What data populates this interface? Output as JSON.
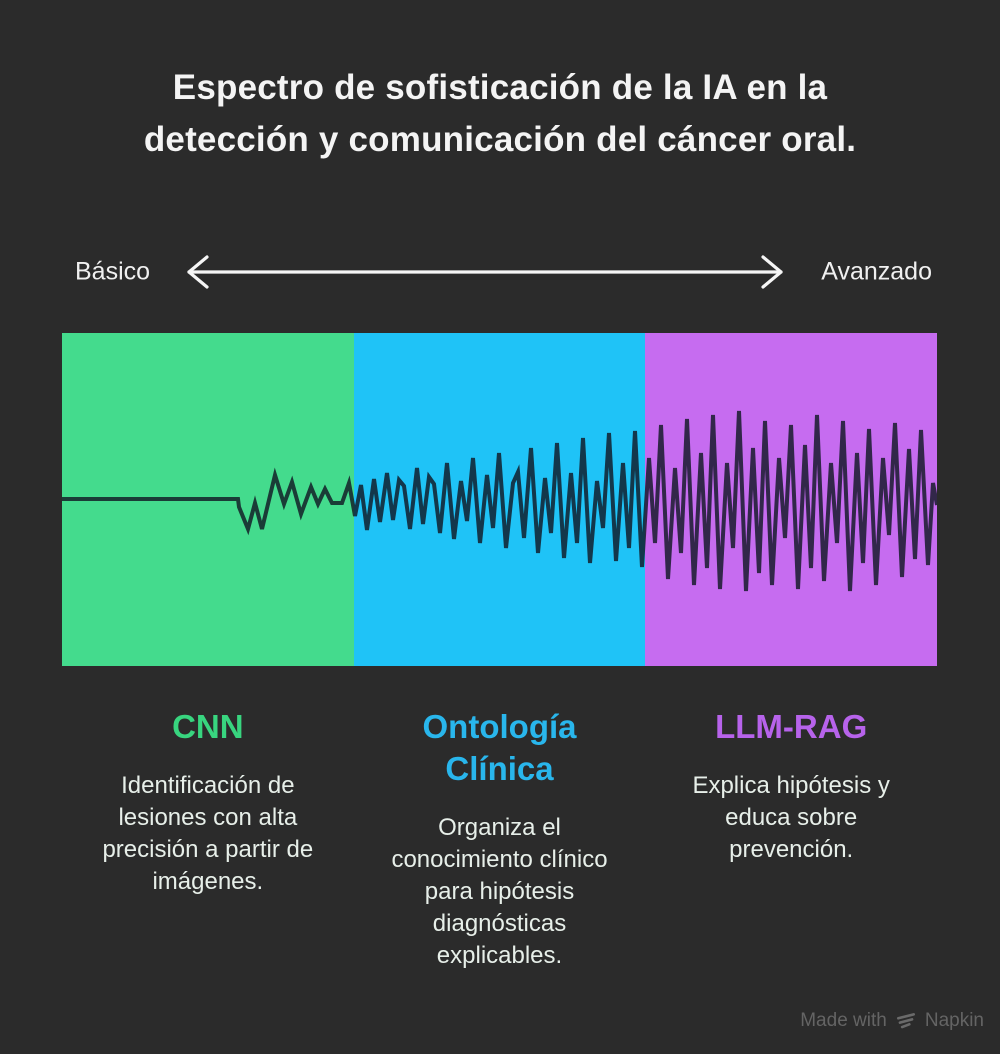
{
  "colors": {
    "background": "#2b2b2b",
    "title_text": "#f4f4f4",
    "axis_text": "#f0f0f0",
    "arrow": "#f5f5f5",
    "description_text": "#e7efe9",
    "waveform_stroke": "rgba(17,24,36,0.82)",
    "footer_text": "#646464"
  },
  "title": {
    "lines": [
      "Espectro de sofisticación de la IA en la",
      "detección y comunicación del cáncer oral."
    ]
  },
  "axis": {
    "left_label": "Básico",
    "right_label": "Avanzado",
    "arrow_icon": "double-headed-arrow-icon"
  },
  "spectrum": {
    "panels": [
      {
        "key": "cnn",
        "band_color": "#44db8d",
        "heading": "CNN",
        "heading_color": "#38d57f",
        "description_lines": [
          "Identificación de",
          "lesiones con alta",
          "precisión a partir de",
          "imágenes."
        ]
      },
      {
        "key": "ontologia-clinica",
        "band_color": "#1fc3f7",
        "heading": [
          "Ontología",
          "Clínica"
        ],
        "heading_color": "#29b6ec",
        "description_lines": [
          "Organiza el",
          "conocimiento clínico",
          "para hipótesis",
          "diagnósticas",
          "explicables."
        ]
      },
      {
        "key": "llm-rag",
        "band_color": "#c66cf0",
        "heading": "LLM-RAG",
        "heading_color": "#b763eb",
        "description_lines": [
          "Explica hipótesis y",
          "educa sobre",
          "prevención."
        ]
      }
    ]
  },
  "waveform": {
    "description": "zigzag signal line growing in amplitude from flat (Básico) to large oscillations (Avanzado)",
    "points": [
      [
        0,
        166
      ],
      [
        176,
        166
      ],
      [
        177,
        174
      ],
      [
        186,
        196
      ],
      [
        193,
        170
      ],
      [
        200,
        196
      ],
      [
        213,
        142
      ],
      [
        222,
        171
      ],
      [
        230,
        149
      ],
      [
        239,
        181
      ],
      [
        249,
        154
      ],
      [
        256,
        171
      ],
      [
        263,
        156
      ],
      [
        270,
        170
      ],
      [
        280,
        170
      ],
      [
        287,
        150
      ],
      [
        293,
        183
      ],
      [
        299,
        152
      ],
      [
        305,
        197
      ],
      [
        312,
        146
      ],
      [
        318,
        189
      ],
      [
        325,
        140
      ],
      [
        331,
        187
      ],
      [
        337,
        147
      ],
      [
        342,
        153
      ],
      [
        348,
        196
      ],
      [
        355,
        135
      ],
      [
        361,
        191
      ],
      [
        367,
        144
      ],
      [
        372,
        151
      ],
      [
        378,
        200
      ],
      [
        385,
        130
      ],
      [
        392,
        206
      ],
      [
        399,
        148
      ],
      [
        405,
        188
      ],
      [
        411,
        125
      ],
      [
        418,
        210
      ],
      [
        425,
        142
      ],
      [
        431,
        195
      ],
      [
        437,
        120
      ],
      [
        444,
        215
      ],
      [
        451,
        150
      ],
      [
        456,
        139
      ],
      [
        462,
        205
      ],
      [
        469,
        115
      ],
      [
        476,
        220
      ],
      [
        483,
        145
      ],
      [
        489,
        200
      ],
      [
        495,
        110
      ],
      [
        502,
        225
      ],
      [
        509,
        140
      ],
      [
        515,
        210
      ],
      [
        521,
        105
      ],
      [
        528,
        230
      ],
      [
        535,
        148
      ],
      [
        541,
        195
      ],
      [
        547,
        100
      ],
      [
        554,
        228
      ],
      [
        561,
        130
      ],
      [
        567,
        215
      ],
      [
        573,
        98
      ],
      [
        580,
        234
      ],
      [
        587,
        125
      ],
      [
        593,
        210
      ],
      [
        599,
        92
      ],
      [
        606,
        246
      ],
      [
        613,
        135
      ],
      [
        619,
        220
      ],
      [
        625,
        86
      ],
      [
        632,
        252
      ],
      [
        639,
        120
      ],
      [
        645,
        235
      ],
      [
        651,
        82
      ],
      [
        658,
        256
      ],
      [
        665,
        130
      ],
      [
        671,
        215
      ],
      [
        677,
        78
      ],
      [
        684,
        258
      ],
      [
        691,
        115
      ],
      [
        697,
        240
      ],
      [
        703,
        88
      ],
      [
        710,
        252
      ],
      [
        717,
        125
      ],
      [
        723,
        205
      ],
      [
        729,
        92
      ],
      [
        736,
        256
      ],
      [
        743,
        112
      ],
      [
        749,
        235
      ],
      [
        755,
        82
      ],
      [
        762,
        248
      ],
      [
        769,
        130
      ],
      [
        775,
        210
      ],
      [
        781,
        88
      ],
      [
        788,
        258
      ],
      [
        795,
        120
      ],
      [
        801,
        230
      ],
      [
        807,
        96
      ],
      [
        814,
        252
      ],
      [
        821,
        125
      ],
      [
        827,
        202
      ],
      [
        833,
        90
      ],
      [
        840,
        244
      ],
      [
        847,
        116
      ],
      [
        853,
        226
      ],
      [
        859,
        97
      ],
      [
        866,
        232
      ],
      [
        871,
        150
      ],
      [
        875,
        172
      ]
    ]
  },
  "footer": {
    "made_with_label": "Made with",
    "brand_name": "Napkin",
    "logo_icon": "napkin-logo-icon"
  }
}
